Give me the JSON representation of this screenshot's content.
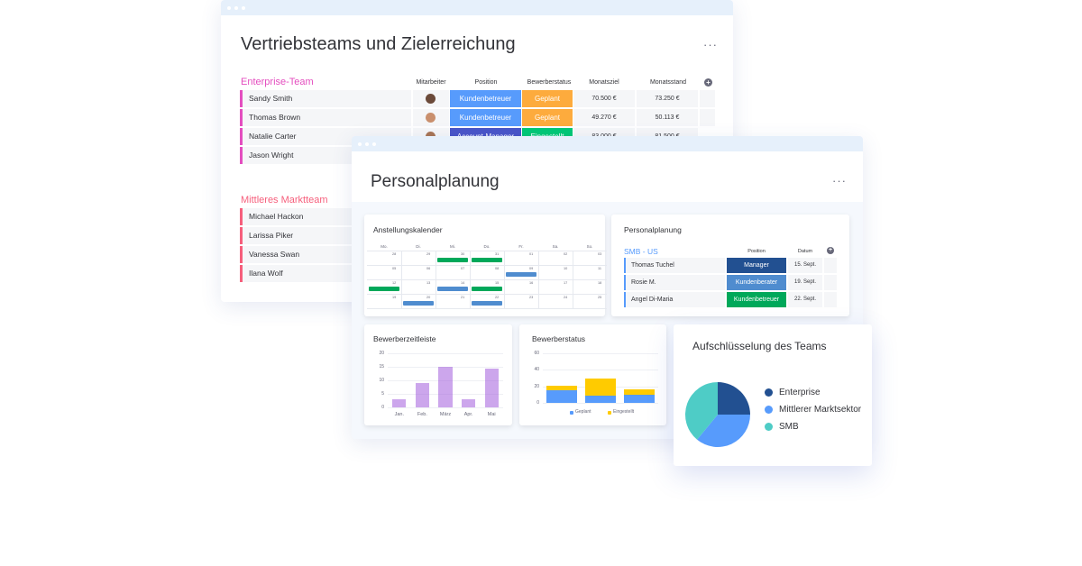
{
  "board1": {
    "title": "Vertriebsteams und Zielerreichung",
    "more": "···",
    "columns": [
      "Mitarbeiter",
      "Position",
      "Bewerberstatus",
      "Monatsziel",
      "Monatsstand"
    ],
    "groups": [
      {
        "title": "Enterprise-Team",
        "color": "#e44ebf",
        "rows": [
          {
            "name": "Sandy Smith",
            "position": "Kundenbetreuer",
            "status": "Geplant",
            "goal": "70.500 €",
            "actual": "73.250 €"
          },
          {
            "name": "Thomas Brown",
            "position": "Kundenbetreuer",
            "status": "Geplant",
            "goal": "49.270 €",
            "actual": "50.113 €"
          },
          {
            "name": "Natalie Carter",
            "position": "Account-Manager",
            "status": "Eingestellt",
            "goal": "83.000 €",
            "actual": "81.500 €"
          },
          {
            "name": "Jason Wright"
          }
        ]
      },
      {
        "title": "Mittleres Marktteam",
        "color": "#f65f7c",
        "rows": [
          {
            "name": "Michael Hackon"
          },
          {
            "name": "Larissa Piker"
          },
          {
            "name": "Vanessa Swan"
          },
          {
            "name": "Ilana Wolf"
          }
        ]
      }
    ]
  },
  "board2": {
    "title": "Personalplanung",
    "more": "···",
    "calendar": {
      "title": "Anstellungskalender",
      "days": [
        "Mo.",
        "Di.",
        "Mi.",
        "Do.",
        "Fr.",
        "Sa.",
        "So."
      ],
      "weeks": [
        [
          "28",
          "29",
          "30",
          "31",
          "01",
          "02",
          "03"
        ],
        [
          "05",
          "06",
          "07",
          "08",
          "09",
          "10",
          "11"
        ],
        [
          "12",
          "13",
          "14",
          "15",
          "16",
          "17",
          "18"
        ],
        [
          "19",
          "20",
          "21",
          "22",
          "23",
          "24",
          "25"
        ]
      ]
    },
    "planning": {
      "title": "Personalplanung",
      "group": "SMB - US",
      "columns": [
        "Position",
        "Datum"
      ],
      "rows": [
        {
          "name": "Thomas Tuchel",
          "position": "Manager",
          "date": "15. Sept."
        },
        {
          "name": "Rosie M.",
          "position": "Kundenberater",
          "date": "19. Sept."
        },
        {
          "name": "Angel Di-Maria",
          "position": "Kundenbetreuer",
          "date": "22. Sept."
        }
      ]
    },
    "timeline": {
      "title": "Bewerberzeitleiste"
    },
    "status": {
      "title": "Bewerberstatus"
    }
  },
  "team_card": {
    "title": "Aufschlüsselung des Teams"
  },
  "chart_data": [
    {
      "type": "bar",
      "title": "Bewerberzeitleiste",
      "categories": [
        "Jan.",
        "Feb.",
        "März",
        "Apr.",
        "Mai"
      ],
      "values": [
        3,
        9,
        15,
        3,
        14.5
      ],
      "yticks": [
        "20",
        "15",
        "10",
        "5",
        "0"
      ],
      "ylim": [
        0,
        20
      ],
      "color": "#a25ddc"
    },
    {
      "type": "bar",
      "title": "Bewerberstatus",
      "stacked": true,
      "categories": [
        "",
        "",
        ""
      ],
      "series": [
        {
          "name": "Geplant",
          "values": [
            15,
            9,
            10
          ],
          "color": "#579bfc"
        },
        {
          "name": "Eingestellt",
          "values": [
            6,
            20,
            6
          ],
          "color": "#ffcb00"
        }
      ],
      "yticks": [
        "60",
        "40",
        "20",
        "0"
      ],
      "ylim": [
        0,
        60
      ],
      "legend": "bottom"
    },
    {
      "type": "pie",
      "title": "Aufschlüsselung des Teams",
      "categories": [
        "Enterprise",
        "Mittlerer Marktsektor",
        "SMB"
      ],
      "values": [
        25,
        36,
        39
      ],
      "colors": [
        "#225091",
        "#579bfc",
        "#4eccc6"
      ],
      "legend": "right"
    }
  ]
}
